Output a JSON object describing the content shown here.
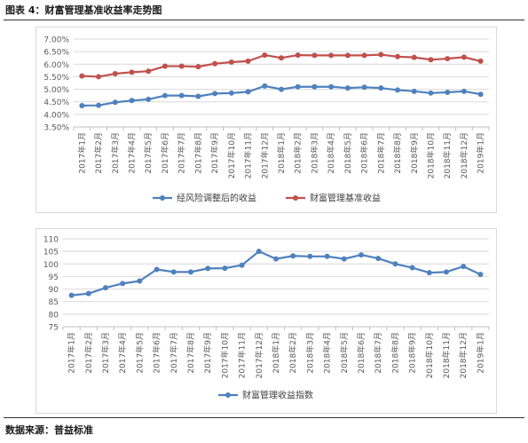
{
  "figure_title": "图表 4：财富管理基准收益率走势图",
  "source": "数据来源：普益标准",
  "colors": {
    "blue": "#4f81bd",
    "red": "#c0504d",
    "grid": "#d9d9d9",
    "axis": "#bfbfbf"
  },
  "chart_data": [
    {
      "type": "line",
      "categories": [
        "2017年1月",
        "2017年2月",
        "2017年3月",
        "2017年4月",
        "2017年5月",
        "2017年6月",
        "2017年7月",
        "2017年8月",
        "2017年9月",
        "2017年10月",
        "2017年11月",
        "2017年12月",
        "2018年1月",
        "2018年2月",
        "2018年3月",
        "2018年4月",
        "2018年5月",
        "2018年6月",
        "2018年7月",
        "2018年8月",
        "2018年9月",
        "2018年10月",
        "2018年11月",
        "2018年12月",
        "2019年1月"
      ],
      "y_ticks": [
        "7.00%",
        "6.50%",
        "6.00%",
        "5.50%",
        "5.00%",
        "4.50%",
        "4.00%",
        "3.50%"
      ],
      "ylim": [
        3.5,
        7.0
      ],
      "grid": true,
      "legend_position": "bottom",
      "series": [
        {
          "name": "经风险调整后的收益",
          "color": "#4f81bd",
          "values": [
            4.35,
            4.36,
            4.48,
            4.55,
            4.6,
            4.75,
            4.75,
            4.72,
            4.83,
            4.85,
            4.9,
            5.13,
            5.0,
            5.1,
            5.1,
            5.1,
            5.05,
            5.08,
            5.05,
            4.97,
            4.92,
            4.85,
            4.88,
            4.92,
            4.8
          ]
        },
        {
          "name": "财富管理基准收益",
          "color": "#c0504d",
          "values": [
            5.53,
            5.5,
            5.62,
            5.68,
            5.72,
            5.92,
            5.92,
            5.9,
            6.02,
            6.08,
            6.12,
            6.36,
            6.25,
            6.36,
            6.35,
            6.35,
            6.35,
            6.35,
            6.38,
            6.3,
            6.27,
            6.18,
            6.22,
            6.28,
            6.12
          ]
        }
      ]
    },
    {
      "type": "line",
      "categories": [
        "2017年1月",
        "2017年2月",
        "2017年3月",
        "2017年4月",
        "2017年5月",
        "2017年6月",
        "2017年7月",
        "2017年8月",
        "2017年9月",
        "2017年10月",
        "2017年11月",
        "2017年12月",
        "2018年1月",
        "2018年2月",
        "2018年3月",
        "2018年4月",
        "2018年5月",
        "2018年6月",
        "2018年7月",
        "2018年8月",
        "2018年9月",
        "2018年10月",
        "2018年11月",
        "2018年12月",
        "2019年1月"
      ],
      "y_ticks": [
        "110",
        "105",
        "100",
        "95",
        "90",
        "85",
        "80",
        "75"
      ],
      "ylim": [
        75,
        110
      ],
      "grid": true,
      "legend_position": "bottom",
      "series": [
        {
          "name": "财富管理收益指数",
          "color": "#4f81bd",
          "values": [
            87.5,
            88.2,
            90.5,
            92.2,
            93.2,
            97.8,
            96.8,
            96.8,
            98.2,
            98.3,
            99.5,
            105.0,
            102.0,
            103.2,
            103.0,
            103.0,
            102.0,
            103.6,
            102.2,
            100.0,
            98.5,
            96.5,
            96.8,
            99.0,
            95.8
          ]
        }
      ]
    }
  ]
}
